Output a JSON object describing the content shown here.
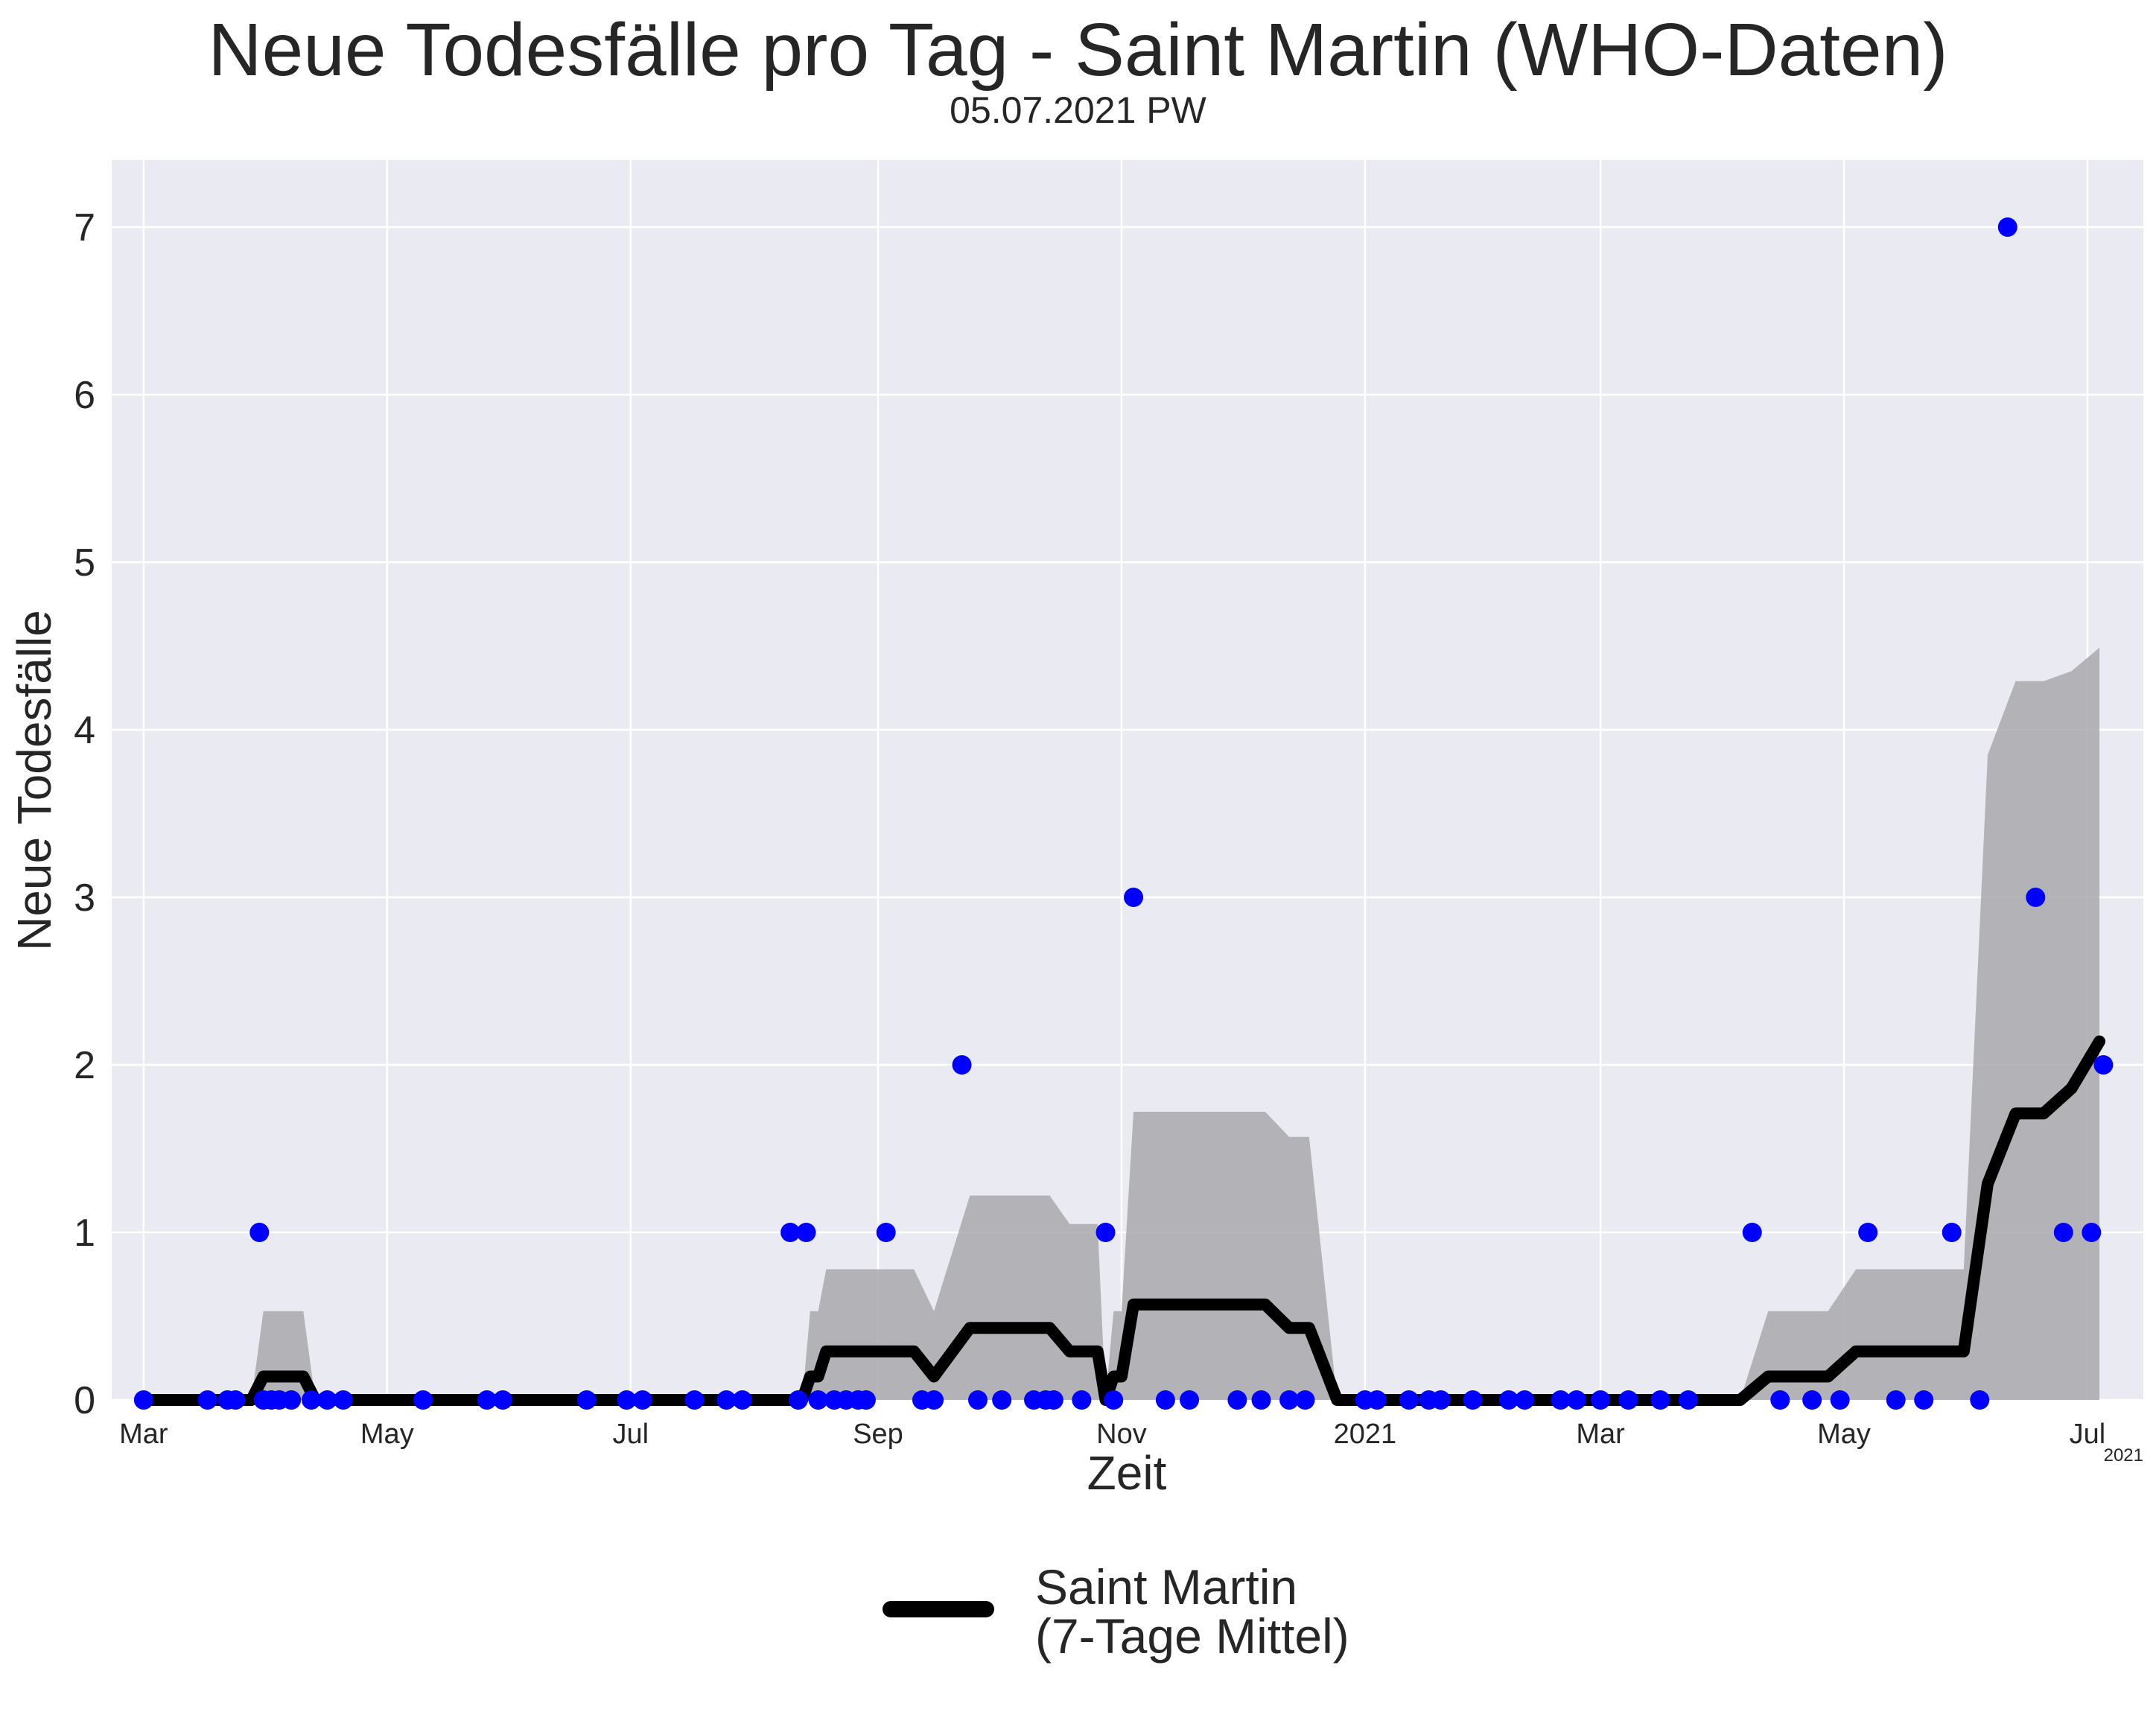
{
  "title": "Neue Todesfälle pro Tag - Saint Martin (WHO-Daten)",
  "subtitle": "05.07.2021 PW",
  "colors": {
    "background": "#eaeaf2",
    "grid": "#ffffff",
    "points": "#0000ff",
    "mean_line": "#000000",
    "band": "#a9a9ad"
  },
  "chart_data": {
    "type": "line",
    "xlabel": "Zeit",
    "ylabel": "Neue Todesfälle",
    "x_offset_label": "2021",
    "xlim": [
      "2020-02-22",
      "2021-07-15"
    ],
    "ylim": [
      0,
      7.4
    ],
    "yticks": [
      0,
      1,
      2,
      3,
      4,
      5,
      6,
      7
    ],
    "xticks": [
      {
        "date": "2020-03-01",
        "label": "Mar"
      },
      {
        "date": "2020-05-01",
        "label": "May"
      },
      {
        "date": "2020-07-01",
        "label": "Jul"
      },
      {
        "date": "2020-09-01",
        "label": "Sep"
      },
      {
        "date": "2020-11-01",
        "label": "Nov"
      },
      {
        "date": "2021-01-01",
        "label": "2021"
      },
      {
        "date": "2021-03-01",
        "label": "Mar"
      },
      {
        "date": "2021-05-01",
        "label": "May"
      },
      {
        "date": "2021-07-01",
        "label": "Jul"
      }
    ],
    "grid": true,
    "legend_position": "bottom-center",
    "series": [
      {
        "name": "Saint Martin\n(7-Tage Mittel)",
        "type": "line",
        "points": [
          [
            "2020-03-01",
            0
          ],
          [
            "2020-03-28",
            0
          ],
          [
            "2020-03-31",
            0.14
          ],
          [
            "2020-04-10",
            0.14
          ],
          [
            "2020-04-13",
            0
          ],
          [
            "2020-08-13",
            0
          ],
          [
            "2020-08-15",
            0.14
          ],
          [
            "2020-08-17",
            0.14
          ],
          [
            "2020-08-19",
            0.29
          ],
          [
            "2020-09-10",
            0.29
          ],
          [
            "2020-09-15",
            0.14
          ],
          [
            "2020-09-24",
            0.43
          ],
          [
            "2020-10-14",
            0.43
          ],
          [
            "2020-10-19",
            0.29
          ],
          [
            "2020-10-26",
            0.29
          ],
          [
            "2020-10-28",
            0
          ],
          [
            "2020-10-30",
            0.14
          ],
          [
            "2020-11-01",
            0.14
          ],
          [
            "2020-11-04",
            0.57
          ],
          [
            "2020-12-07",
            0.57
          ],
          [
            "2020-12-13",
            0.43
          ],
          [
            "2020-12-18",
            0.43
          ],
          [
            "2020-12-25",
            0
          ],
          [
            "2021-04-05",
            0
          ],
          [
            "2021-04-12",
            0.14
          ],
          [
            "2021-04-27",
            0.14
          ],
          [
            "2021-05-04",
            0.29
          ],
          [
            "2021-05-31",
            0.29
          ],
          [
            "2021-06-06",
            1.29
          ],
          [
            "2021-06-13",
            1.71
          ],
          [
            "2021-06-20",
            1.71
          ],
          [
            "2021-06-27",
            1.86
          ],
          [
            "2021-07-04",
            2.14
          ]
        ]
      },
      {
        "name": "",
        "type": "band",
        "points": [
          [
            "2020-03-01",
            0
          ],
          [
            "2020-03-28",
            0
          ],
          [
            "2020-03-31",
            0.53
          ],
          [
            "2020-04-10",
            0.53
          ],
          [
            "2020-04-13",
            0
          ],
          [
            "2020-08-13",
            0
          ],
          [
            "2020-08-15",
            0.53
          ],
          [
            "2020-08-17",
            0.53
          ],
          [
            "2020-08-19",
            0.78
          ],
          [
            "2020-09-10",
            0.78
          ],
          [
            "2020-09-15",
            0.53
          ],
          [
            "2020-09-24",
            1.22
          ],
          [
            "2020-10-14",
            1.22
          ],
          [
            "2020-10-19",
            1.05
          ],
          [
            "2020-10-26",
            1.05
          ],
          [
            "2020-10-28",
            0
          ],
          [
            "2020-10-30",
            0.53
          ],
          [
            "2020-11-01",
            0.53
          ],
          [
            "2020-11-04",
            1.72
          ],
          [
            "2020-12-07",
            1.72
          ],
          [
            "2020-12-13",
            1.57
          ],
          [
            "2020-12-18",
            1.57
          ],
          [
            "2020-12-25",
            0
          ],
          [
            "2021-04-05",
            0
          ],
          [
            "2021-04-12",
            0.53
          ],
          [
            "2021-04-27",
            0.53
          ],
          [
            "2021-05-04",
            0.78
          ],
          [
            "2021-05-31",
            0.78
          ],
          [
            "2021-06-06",
            3.85
          ],
          [
            "2021-06-13",
            4.29
          ],
          [
            "2021-06-20",
            4.29
          ],
          [
            "2021-06-27",
            4.35
          ],
          [
            "2021-07-04",
            4.49
          ]
        ]
      },
      {
        "name": "",
        "type": "scatter",
        "points": [
          [
            "2020-03-01",
            0
          ],
          [
            "2020-03-17",
            0
          ],
          [
            "2020-03-22",
            0
          ],
          [
            "2020-03-24",
            0
          ],
          [
            "2020-03-30",
            1
          ],
          [
            "2020-03-31",
            0
          ],
          [
            "2020-04-02",
            0
          ],
          [
            "2020-04-04",
            0
          ],
          [
            "2020-04-07",
            0
          ],
          [
            "2020-04-12",
            0
          ],
          [
            "2020-04-16",
            0
          ],
          [
            "2020-04-20",
            0
          ],
          [
            "2020-05-10",
            0
          ],
          [
            "2020-05-26",
            0
          ],
          [
            "2020-05-30",
            0
          ],
          [
            "2020-06-20",
            0
          ],
          [
            "2020-06-30",
            0
          ],
          [
            "2020-07-04",
            0
          ],
          [
            "2020-07-17",
            0
          ],
          [
            "2020-07-25",
            0
          ],
          [
            "2020-07-29",
            0
          ],
          [
            "2020-08-10",
            1
          ],
          [
            "2020-08-12",
            0
          ],
          [
            "2020-08-14",
            1
          ],
          [
            "2020-08-17",
            0
          ],
          [
            "2020-08-21",
            0
          ],
          [
            "2020-08-24",
            0
          ],
          [
            "2020-08-27",
            0
          ],
          [
            "2020-08-29",
            0
          ],
          [
            "2020-09-03",
            1
          ],
          [
            "2020-09-12",
            0
          ],
          [
            "2020-09-15",
            0
          ],
          [
            "2020-09-22",
            2
          ],
          [
            "2020-09-26",
            0
          ],
          [
            "2020-10-02",
            0
          ],
          [
            "2020-10-10",
            0
          ],
          [
            "2020-10-13",
            0
          ],
          [
            "2020-10-15",
            0
          ],
          [
            "2020-10-22",
            0
          ],
          [
            "2020-10-28",
            1
          ],
          [
            "2020-10-30",
            0
          ],
          [
            "2020-11-04",
            3
          ],
          [
            "2020-11-12",
            0
          ],
          [
            "2020-11-18",
            0
          ],
          [
            "2020-11-30",
            0
          ],
          [
            "2020-12-06",
            0
          ],
          [
            "2020-12-13",
            0
          ],
          [
            "2020-12-17",
            0
          ],
          [
            "2021-01-01",
            0
          ],
          [
            "2021-01-04",
            0
          ],
          [
            "2021-01-12",
            0
          ],
          [
            "2021-01-17",
            0
          ],
          [
            "2021-01-20",
            0
          ],
          [
            "2021-01-28",
            0
          ],
          [
            "2021-02-06",
            0
          ],
          [
            "2021-02-10",
            0
          ],
          [
            "2021-02-19",
            0
          ],
          [
            "2021-02-23",
            0
          ],
          [
            "2021-03-01",
            0
          ],
          [
            "2021-03-08",
            0
          ],
          [
            "2021-03-16",
            0
          ],
          [
            "2021-03-23",
            0
          ],
          [
            "2021-04-08",
            1
          ],
          [
            "2021-04-15",
            0
          ],
          [
            "2021-04-23",
            0
          ],
          [
            "2021-04-30",
            0
          ],
          [
            "2021-05-07",
            1
          ],
          [
            "2021-05-14",
            0
          ],
          [
            "2021-05-21",
            0
          ],
          [
            "2021-05-28",
            1
          ],
          [
            "2021-06-04",
            0
          ],
          [
            "2021-06-11",
            7
          ],
          [
            "2021-06-18",
            3
          ],
          [
            "2021-06-25",
            1
          ],
          [
            "2021-07-02",
            1
          ],
          [
            "2021-07-05",
            2
          ]
        ]
      }
    ]
  }
}
